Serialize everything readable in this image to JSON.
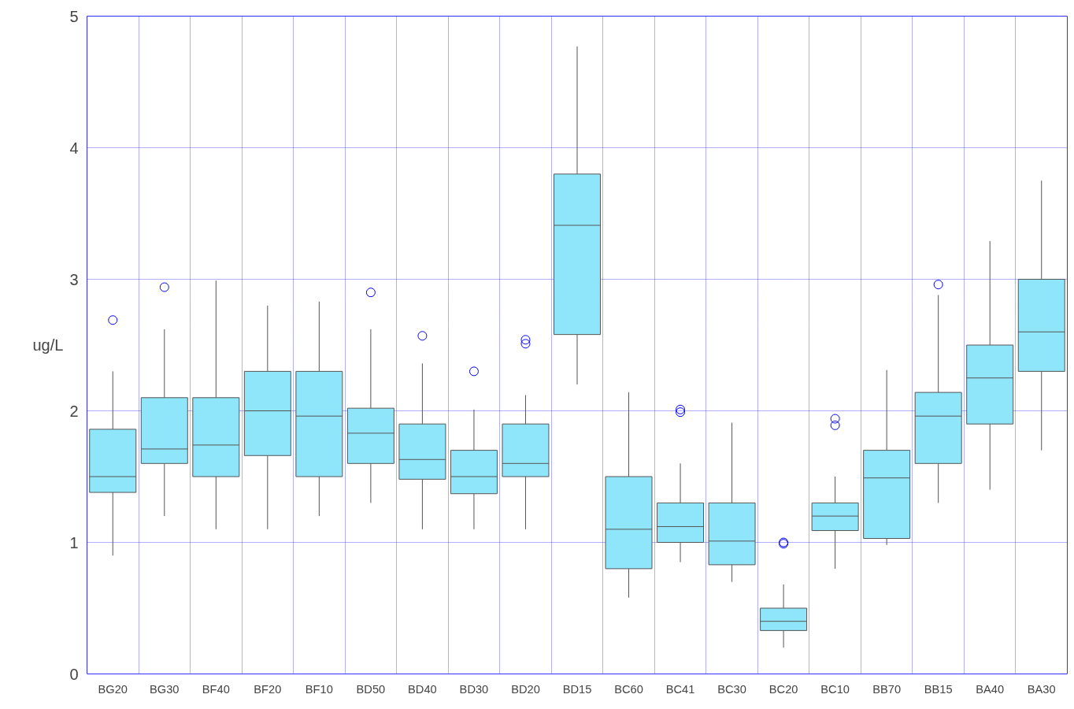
{
  "chart_data": {
    "type": "box",
    "ylabel": "ug/L",
    "ylim": [
      0,
      5
    ],
    "yticks": [
      0,
      1,
      2,
      3,
      4,
      5
    ],
    "grid": true,
    "color": "#8fe6fb",
    "categories": [
      "BG20",
      "BG30",
      "BF40",
      "BF20",
      "BF10",
      "BD50",
      "BD40",
      "BD30",
      "BD20",
      "BD15",
      "BC60",
      "BC41",
      "BC30",
      "BC20",
      "BC10",
      "BB70",
      "BB15",
      "BA40",
      "BA30"
    ],
    "boxes": [
      {
        "low": 0.9,
        "q1": 1.38,
        "median": 1.5,
        "q3": 1.86,
        "high": 2.3,
        "outliers": [
          2.69
        ]
      },
      {
        "low": 1.2,
        "q1": 1.6,
        "median": 1.71,
        "q3": 2.1,
        "high": 2.62,
        "outliers": [
          2.94
        ]
      },
      {
        "low": 1.1,
        "q1": 1.5,
        "median": 1.74,
        "q3": 2.1,
        "high": 2.99
      },
      {
        "low": 1.1,
        "q1": 1.66,
        "median": 2.0,
        "q3": 2.3,
        "high": 2.8
      },
      {
        "low": 1.2,
        "q1": 1.5,
        "median": 1.96,
        "q3": 2.3,
        "high": 2.83
      },
      {
        "low": 1.3,
        "q1": 1.6,
        "median": 1.83,
        "q3": 2.02,
        "high": 2.62,
        "outliers": [
          2.9
        ]
      },
      {
        "low": 1.1,
        "q1": 1.48,
        "median": 1.63,
        "q3": 1.9,
        "high": 2.36,
        "outliers": [
          2.57
        ]
      },
      {
        "low": 1.1,
        "q1": 1.37,
        "median": 1.5,
        "q3": 1.7,
        "high": 2.01,
        "outliers": [
          2.3
        ]
      },
      {
        "low": 1.1,
        "q1": 1.5,
        "median": 1.6,
        "q3": 1.9,
        "high": 2.12,
        "outliers": [
          2.54,
          2.51
        ]
      },
      {
        "low": 2.2,
        "q1": 2.58,
        "median": 3.41,
        "q3": 3.8,
        "high": 4.77
      },
      {
        "low": 0.58,
        "q1": 0.8,
        "median": 1.1,
        "q3": 1.5,
        "high": 2.14
      },
      {
        "low": 0.85,
        "q1": 1.0,
        "median": 1.12,
        "q3": 1.3,
        "high": 1.6,
        "outliers": [
          2.01,
          1.99
        ]
      },
      {
        "low": 0.7,
        "q1": 0.83,
        "median": 1.01,
        "q3": 1.3,
        "high": 1.91
      },
      {
        "low": 0.2,
        "q1": 0.33,
        "median": 0.4,
        "q3": 0.5,
        "high": 0.68,
        "outliers": [
          1.0,
          0.99
        ]
      },
      {
        "low": 0.8,
        "q1": 1.09,
        "median": 1.2,
        "q3": 1.3,
        "high": 1.5,
        "outliers": [
          1.94,
          1.89
        ]
      },
      {
        "low": 0.98,
        "q1": 1.03,
        "median": 1.49,
        "q3": 1.7,
        "high": 2.31
      },
      {
        "low": 1.3,
        "q1": 1.6,
        "median": 1.96,
        "q3": 2.14,
        "high": 2.88,
        "outliers": [
          2.96
        ]
      },
      {
        "low": 1.4,
        "q1": 1.9,
        "median": 2.25,
        "q3": 2.5,
        "high": 3.29
      },
      {
        "low": 1.7,
        "q1": 2.3,
        "median": 2.6,
        "q3": 3.0,
        "high": 3.75
      }
    ]
  }
}
